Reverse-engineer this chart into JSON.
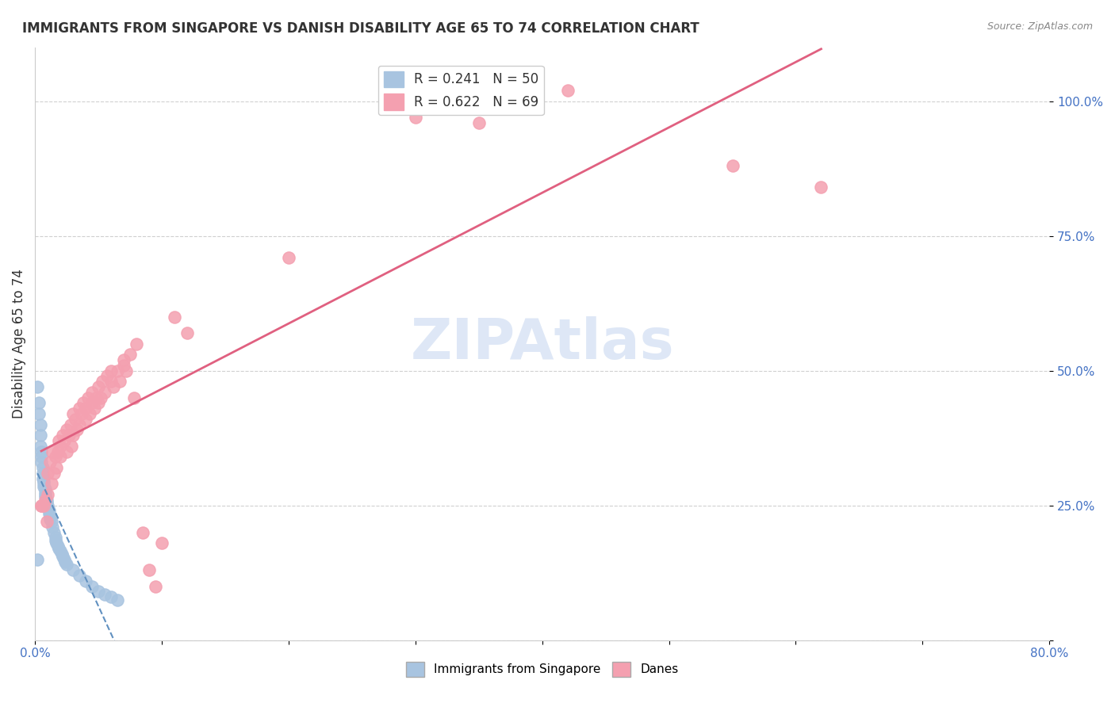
{
  "title": "IMMIGRANTS FROM SINGAPORE VS DANISH DISABILITY AGE 65 TO 74 CORRELATION CHART",
  "source": "Source: ZipAtlas.com",
  "xlabel": "",
  "ylabel": "Disability Age 65 to 74",
  "xlim": [
    0.0,
    0.8
  ],
  "ylim": [
    0.0,
    1.1
  ],
  "yticks": [
    0.0,
    0.25,
    0.5,
    0.75,
    1.0
  ],
  "ytick_labels": [
    "",
    "25.0%",
    "50.0%",
    "75.0%",
    "100.0%"
  ],
  "xtick_labels": [
    "0.0%",
    "",
    "",
    "",
    "",
    "",
    "",
    "",
    "80.0%"
  ],
  "blue_R": 0.241,
  "blue_N": 50,
  "pink_R": 0.622,
  "pink_N": 69,
  "blue_color": "#a8c4e0",
  "pink_color": "#f4a0b0",
  "blue_line_color": "#6090c0",
  "pink_line_color": "#e06080",
  "watermark": "ZIPAtlas",
  "watermark_color": "#c8d8f0",
  "blue_scatter_x": [
    0.002,
    0.003,
    0.003,
    0.004,
    0.004,
    0.004,
    0.005,
    0.005,
    0.005,
    0.006,
    0.006,
    0.006,
    0.007,
    0.007,
    0.007,
    0.008,
    0.008,
    0.008,
    0.008,
    0.009,
    0.009,
    0.01,
    0.01,
    0.011,
    0.011,
    0.012,
    0.012,
    0.013,
    0.014,
    0.015,
    0.016,
    0.016,
    0.017,
    0.018,
    0.019,
    0.02,
    0.021,
    0.022,
    0.023,
    0.024,
    0.025,
    0.03,
    0.035,
    0.04,
    0.045,
    0.05,
    0.055,
    0.06,
    0.065,
    0.002
  ],
  "blue_scatter_y": [
    0.47,
    0.44,
    0.42,
    0.4,
    0.38,
    0.36,
    0.35,
    0.34,
    0.33,
    0.32,
    0.31,
    0.3,
    0.295,
    0.29,
    0.285,
    0.28,
    0.275,
    0.27,
    0.265,
    0.26,
    0.255,
    0.25,
    0.245,
    0.24,
    0.235,
    0.23,
    0.225,
    0.22,
    0.21,
    0.2,
    0.19,
    0.185,
    0.18,
    0.175,
    0.17,
    0.165,
    0.16,
    0.155,
    0.15,
    0.145,
    0.14,
    0.13,
    0.12,
    0.11,
    0.1,
    0.09,
    0.085,
    0.08,
    0.075,
    0.15
  ],
  "pink_scatter_x": [
    0.005,
    0.007,
    0.008,
    0.009,
    0.01,
    0.01,
    0.012,
    0.013,
    0.014,
    0.015,
    0.016,
    0.017,
    0.018,
    0.019,
    0.02,
    0.02,
    0.022,
    0.023,
    0.025,
    0.025,
    0.027,
    0.028,
    0.029,
    0.03,
    0.03,
    0.032,
    0.033,
    0.035,
    0.035,
    0.037,
    0.038,
    0.04,
    0.04,
    0.042,
    0.043,
    0.045,
    0.045,
    0.047,
    0.048,
    0.05,
    0.05,
    0.052,
    0.053,
    0.055,
    0.057,
    0.06,
    0.06,
    0.062,
    0.065,
    0.067,
    0.07,
    0.07,
    0.072,
    0.075,
    0.078,
    0.08,
    0.085,
    0.09,
    0.095,
    0.1,
    0.11,
    0.12,
    0.2,
    0.3,
    0.35,
    0.42,
    0.55,
    0.62,
    0.005
  ],
  "pink_scatter_y": [
    0.25,
    0.25,
    0.26,
    0.22,
    0.31,
    0.27,
    0.33,
    0.29,
    0.35,
    0.31,
    0.34,
    0.32,
    0.35,
    0.37,
    0.34,
    0.36,
    0.38,
    0.37,
    0.35,
    0.39,
    0.38,
    0.4,
    0.36,
    0.42,
    0.38,
    0.41,
    0.39,
    0.43,
    0.4,
    0.42,
    0.44,
    0.41,
    0.43,
    0.45,
    0.42,
    0.44,
    0.46,
    0.43,
    0.45,
    0.44,
    0.47,
    0.45,
    0.48,
    0.46,
    0.49,
    0.48,
    0.5,
    0.47,
    0.5,
    0.48,
    0.51,
    0.52,
    0.5,
    0.53,
    0.45,
    0.55,
    0.2,
    0.13,
    0.1,
    0.18,
    0.6,
    0.57,
    0.71,
    0.97,
    0.96,
    1.02,
    0.88,
    0.84,
    0.25
  ]
}
